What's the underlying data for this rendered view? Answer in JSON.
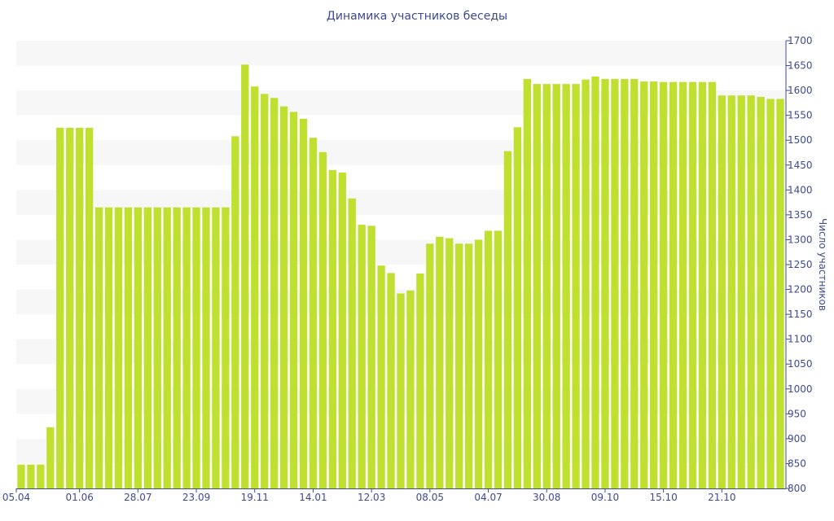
{
  "chart_data": {
    "type": "bar",
    "title": "Динамика участников беседы",
    "xlabel": "",
    "ylabel": "Число участников",
    "ylim": [
      800,
      1700
    ],
    "y_ticks": [
      800,
      850,
      900,
      950,
      1000,
      1050,
      1100,
      1150,
      1200,
      1250,
      1300,
      1350,
      1400,
      1450,
      1500,
      1550,
      1600,
      1650,
      1700
    ],
    "x_tick_labels": [
      "05.04",
      "01.06",
      "28.07",
      "23.09",
      "19.11",
      "14.01",
      "12.03",
      "08.05",
      "04.07",
      "30.08",
      "09.10",
      "15.10",
      "21.10"
    ],
    "x_tick_bar_index": [
      0,
      6,
      12,
      18,
      24,
      30,
      36,
      42,
      48,
      54,
      60,
      66,
      72
    ],
    "grid": "horizontal bands",
    "bar_color": "#bfe02f",
    "values": [
      848,
      848,
      848,
      923,
      1525,
      1525,
      1525,
      1525,
      1365,
      1365,
      1365,
      1365,
      1365,
      1365,
      1365,
      1365,
      1365,
      1365,
      1365,
      1365,
      1365,
      1365,
      1508,
      1652,
      1608,
      1593,
      1585,
      1568,
      1557,
      1543,
      1505,
      1476,
      1440,
      1435,
      1383,
      1330,
      1328,
      1248,
      1233,
      1192,
      1198,
      1232,
      1292,
      1306,
      1303,
      1292,
      1292,
      1300,
      1318,
      1318,
      1478,
      1526,
      1623,
      1613,
      1613,
      1613,
      1613,
      1613,
      1622,
      1628,
      1623,
      1623,
      1623,
      1623,
      1618,
      1618,
      1617,
      1617,
      1617,
      1617,
      1617,
      1617,
      1590,
      1590,
      1590,
      1590,
      1587,
      1583,
      1583
    ]
  }
}
